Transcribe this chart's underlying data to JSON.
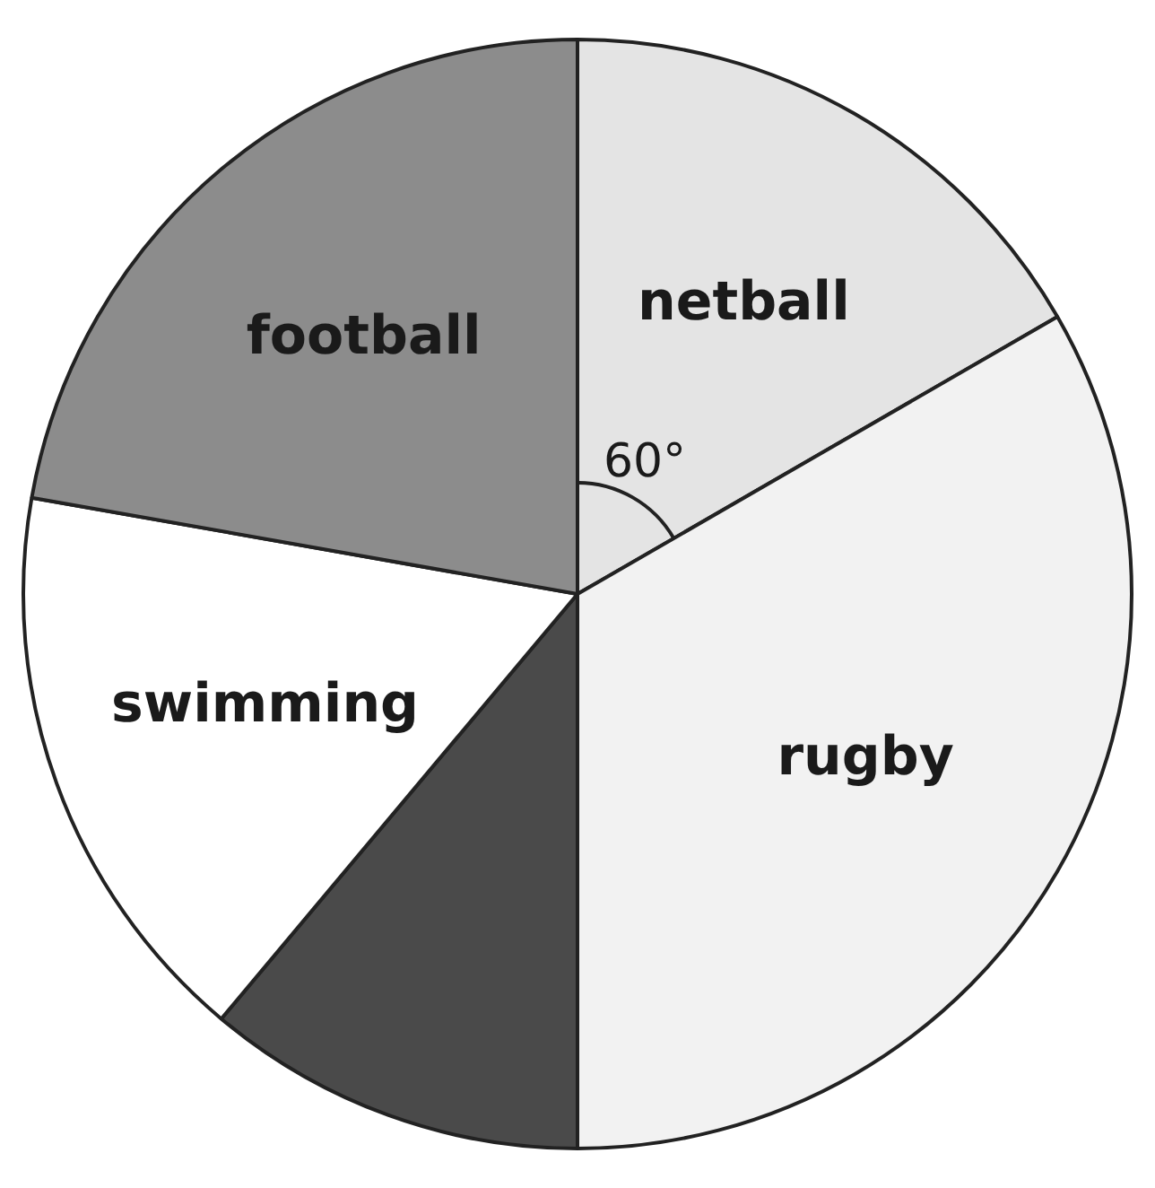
{
  "chart_data": {
    "type": "pie",
    "categories": [
      "netball",
      "rugby",
      null,
      "swimming",
      "football"
    ],
    "values": [
      60,
      120,
      40,
      60,
      80
    ],
    "colors": [
      "#e4e4e4",
      "#f2f2f2",
      "#4a4a4a",
      "#ffffff",
      "#8c8c8c"
    ],
    "value_labels": [
      "60°",
      null,
      null,
      null,
      null
    ],
    "legend": false
  }
}
